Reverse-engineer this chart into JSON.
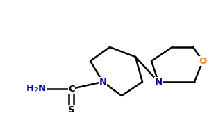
{
  "background_color": "#ffffff",
  "figsize": [
    3.11,
    1.99
  ],
  "dpi": 100,
  "lw": 1.8,
  "atom_colors": {
    "N": "#00008B",
    "O": "#FF8C00",
    "C": "#000000",
    "S": "#000000"
  }
}
